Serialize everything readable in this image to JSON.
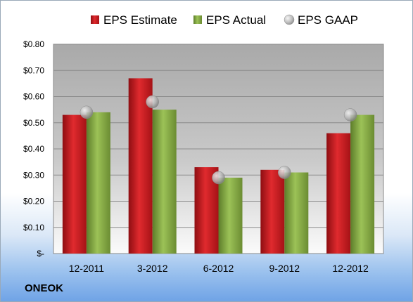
{
  "company": "ONEOK",
  "chart_data": {
    "type": "bar",
    "title": "",
    "xlabel": "",
    "ylabel": "",
    "categories": [
      "12-2011",
      "3-2012",
      "6-2012",
      "9-2012",
      "12-2012"
    ],
    "series": [
      {
        "name": "EPS Estimate",
        "type": "bar",
        "color": "#c0141a",
        "values": [
          0.53,
          0.67,
          0.33,
          0.32,
          0.46
        ]
      },
      {
        "name": "EPS Actual",
        "type": "bar",
        "color": "#7ea43c",
        "values": [
          0.54,
          0.55,
          0.29,
          0.31,
          0.53
        ]
      },
      {
        "name": "EPS GAAP",
        "type": "scatter",
        "color": "#a8a8a8",
        "values": [
          0.54,
          0.58,
          0.29,
          0.31,
          0.53
        ]
      }
    ],
    "ylim": [
      0,
      0.8
    ],
    "yticks": [
      0,
      0.1,
      0.2,
      0.3,
      0.4,
      0.5,
      0.6,
      0.7,
      0.8
    ],
    "ytick_labels": [
      "$-",
      "$0.10",
      "$0.20",
      "$0.30",
      "$0.40",
      "$0.50",
      "$0.60",
      "$0.70",
      "$0.80"
    ],
    "grid": true,
    "legend_position": "top"
  }
}
